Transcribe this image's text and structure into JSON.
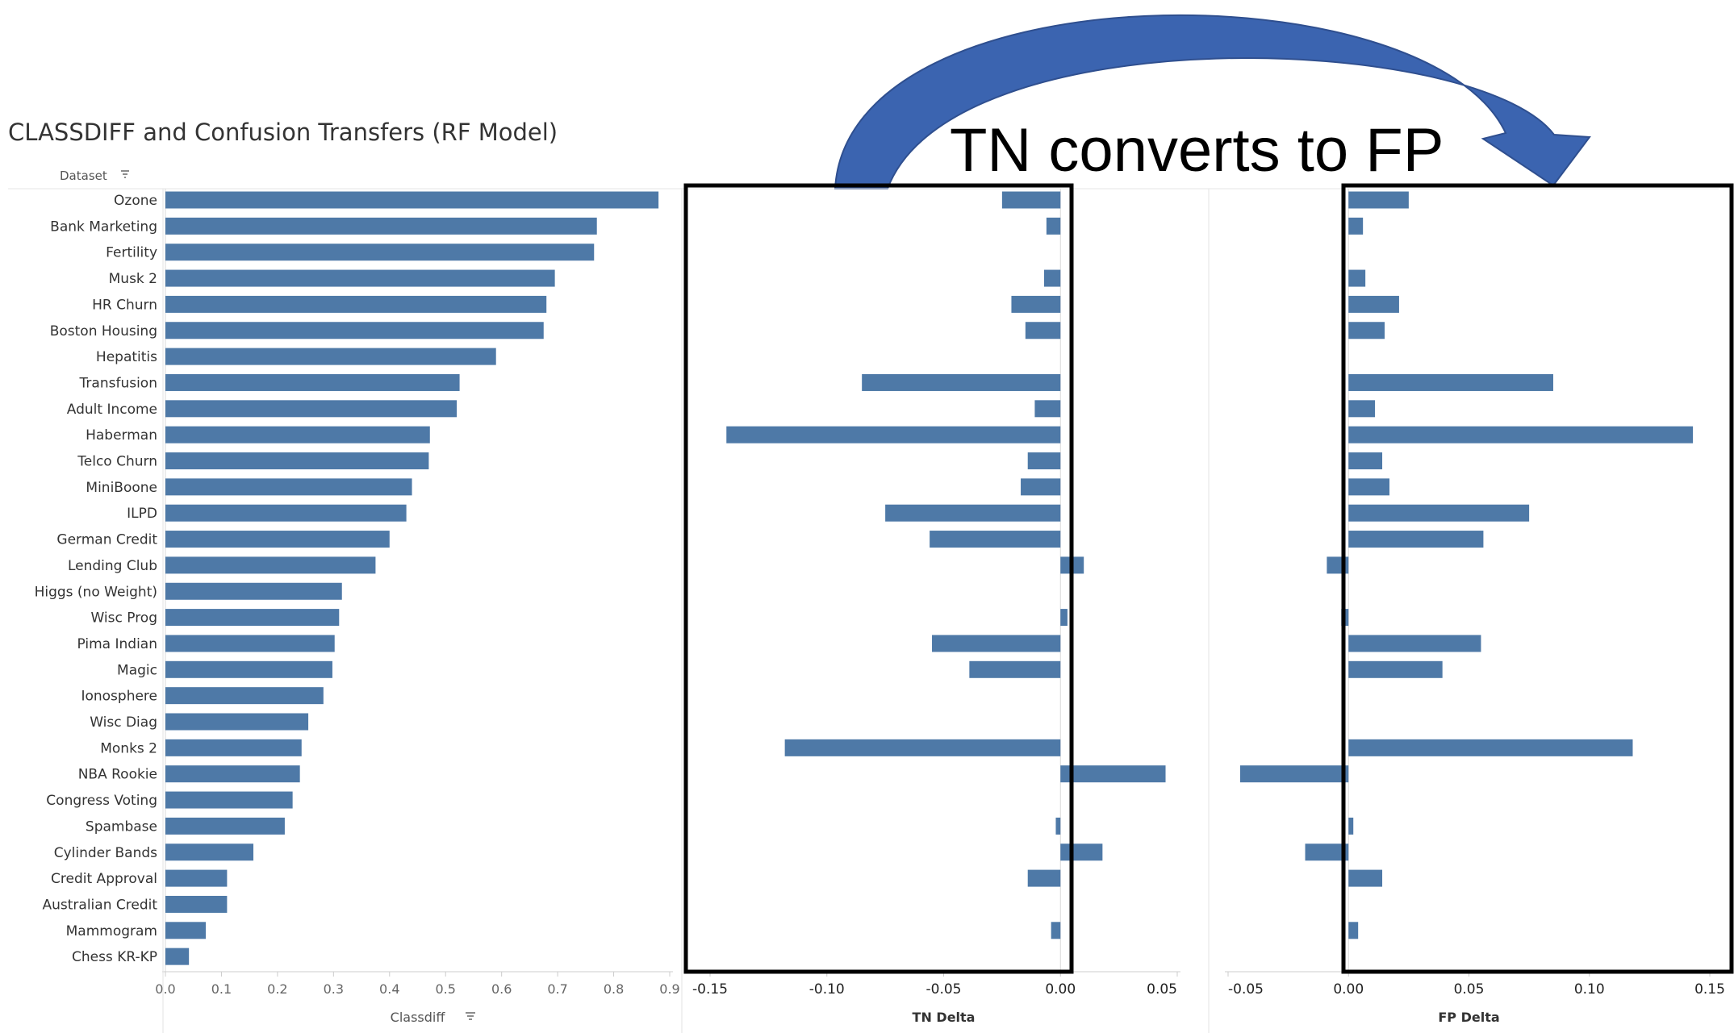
{
  "title": "CLASSDIFF and Confusion Transfers (RF Model)",
  "annotation": "TN converts to FP",
  "dataset_field_label": "Dataset",
  "bar_color": "#4e79a7",
  "arrow_color": "#3b64b0",
  "chart_data": [
    {
      "type": "bar",
      "orientation": "horizontal",
      "categories": [
        "Ozone",
        "Bank Marketing",
        "Fertility",
        "Musk 2",
        "HR Churn",
        "Boston Housing",
        "Hepatitis",
        "Transfusion",
        "Adult Income",
        "Haberman",
        "Telco Churn",
        "MiniBoone",
        "ILPD",
        "German Credit",
        "Lending Club",
        "Higgs (no Weight)",
        "Wisc Prog",
        "Pima Indian",
        "Magic",
        "Ionosphere",
        "Wisc Diag",
        "Monks 2",
        "NBA Rookie",
        "Congress Voting",
        "Spambase",
        "Cylinder Bands",
        "Credit Approval",
        "Australian Credit",
        "Mammogram",
        "Chess KR-KP"
      ],
      "values": [
        0.88,
        0.77,
        0.765,
        0.695,
        0.68,
        0.675,
        0.59,
        0.525,
        0.52,
        0.472,
        0.47,
        0.44,
        0.43,
        0.4,
        0.375,
        0.315,
        0.31,
        0.302,
        0.298,
        0.282,
        0.255,
        0.243,
        0.24,
        0.227,
        0.213,
        0.157,
        0.11,
        0.11,
        0.072,
        0.042
      ],
      "xlabel": "Classdiff",
      "xlim": [
        0,
        0.9
      ],
      "xticks": [
        "0.0",
        "0.1",
        "0.2",
        "0.3",
        "0.4",
        "0.5",
        "0.6",
        "0.7",
        "0.8",
        "0.9"
      ]
    },
    {
      "type": "bar",
      "orientation": "horizontal",
      "categories": [
        "Ozone",
        "Bank Marketing",
        "Fertility",
        "Musk 2",
        "HR Churn",
        "Boston Housing",
        "Hepatitis",
        "Transfusion",
        "Adult Income",
        "Haberman",
        "Telco Churn",
        "MiniBoone",
        "ILPD",
        "German Credit",
        "Lending Club",
        "Higgs (no Weight)",
        "Wisc Prog",
        "Pima Indian",
        "Magic",
        "Ionosphere",
        "Wisc Diag",
        "Monks 2",
        "NBA Rookie",
        "Congress Voting",
        "Spambase",
        "Cylinder Bands",
        "Credit Approval",
        "Australian Credit",
        "Mammogram",
        "Chess KR-KP"
      ],
      "values": [
        -0.025,
        -0.006,
        0,
        -0.007,
        -0.021,
        -0.015,
        0,
        -0.085,
        -0.011,
        -0.143,
        -0.014,
        -0.017,
        -0.075,
        -0.056,
        0.01,
        0,
        0.003,
        -0.055,
        -0.039,
        0,
        0,
        -0.118,
        0.045,
        0,
        -0.002,
        0.018,
        -0.014,
        0,
        -0.004,
        0
      ],
      "xlabel": "TN Delta",
      "xlim": [
        -0.15,
        0.05
      ],
      "xticks": [
        "-0.15",
        "-0.10",
        "-0.05",
        "0.00",
        "0.05"
      ]
    },
    {
      "type": "bar",
      "orientation": "horizontal",
      "categories": [
        "Ozone",
        "Bank Marketing",
        "Fertility",
        "Musk 2",
        "HR Churn",
        "Boston Housing",
        "Hepatitis",
        "Transfusion",
        "Adult Income",
        "Haberman",
        "Telco Churn",
        "MiniBoone",
        "ILPD",
        "German Credit",
        "Lending Club",
        "Higgs (no Weight)",
        "Wisc Prog",
        "Pima Indian",
        "Magic",
        "Ionosphere",
        "Wisc Diag",
        "Monks 2",
        "NBA Rookie",
        "Congress Voting",
        "Spambase",
        "Cylinder Bands",
        "Credit Approval",
        "Australian Credit",
        "Mammogram",
        "Chess KR-KP"
      ],
      "values": [
        0.025,
        0.006,
        0,
        0.007,
        0.021,
        0.015,
        0,
        0.085,
        0.011,
        0.143,
        0.014,
        0.017,
        0.075,
        0.056,
        -0.009,
        0,
        -0.003,
        0.055,
        0.039,
        0,
        0,
        0.118,
        -0.045,
        0,
        0.002,
        -0.018,
        0.014,
        0,
        0.004,
        0
      ],
      "xlabel": "FP Delta",
      "xlim": [
        -0.05,
        0.15
      ],
      "xticks": [
        "-0.05",
        "0.00",
        "0.05",
        "0.10",
        "0.15"
      ]
    }
  ]
}
